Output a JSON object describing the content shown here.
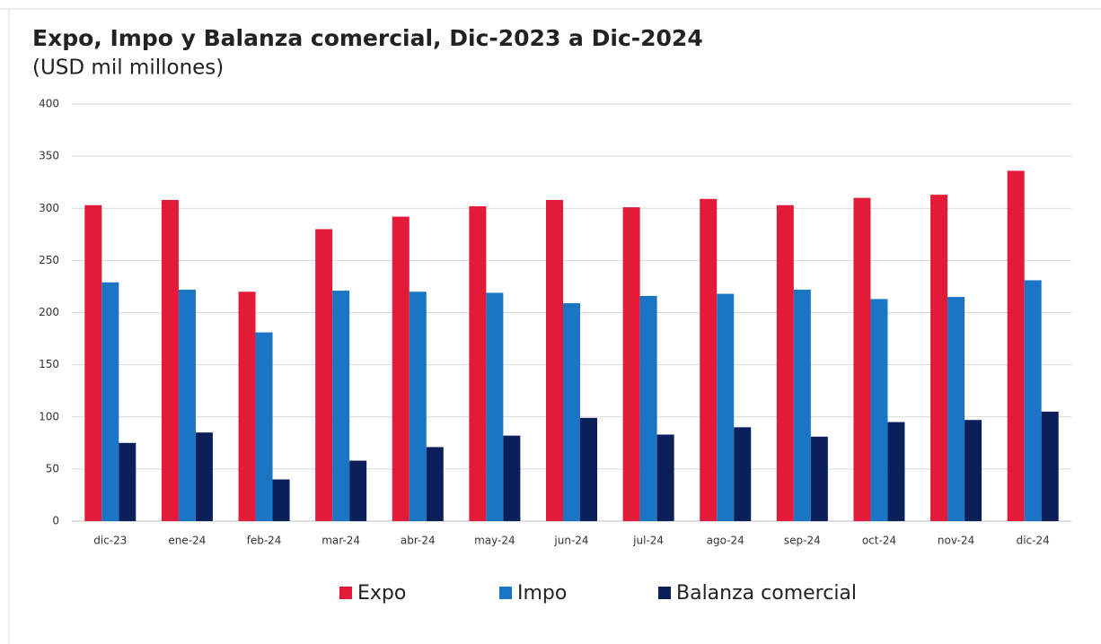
{
  "chart_data": {
    "type": "bar",
    "title": "Expo, Impo y Balanza comercial, Dic-2023 a Dic-2024",
    "subtitle": "(USD mil millones)",
    "categories": [
      "dic-23",
      "ene-24",
      "feb-24",
      "mar-24",
      "abr-24",
      "may-24",
      "jun-24",
      "jul-24",
      "ago-24",
      "sep-24",
      "oct-24",
      "nov-24",
      "dic-24"
    ],
    "series": [
      {
        "name": "Expo",
        "color": "#e31b38",
        "values": [
          303,
          308,
          220,
          280,
          292,
          302,
          308,
          301,
          309,
          303,
          310,
          313,
          336
        ]
      },
      {
        "name": "Impo",
        "color": "#1a75c4",
        "values": [
          229,
          222,
          181,
          221,
          220,
          219,
          209,
          216,
          218,
          222,
          213,
          215,
          231
        ]
      },
      {
        "name": "Balanza comercial",
        "color": "#0b2059",
        "values": [
          75,
          85,
          40,
          58,
          71,
          82,
          99,
          83,
          90,
          81,
          95,
          97,
          105
        ]
      }
    ],
    "ylim": [
      0,
      400
    ],
    "yticks": [
      0,
      50,
      100,
      150,
      200,
      250,
      300,
      350,
      400
    ],
    "grid": true,
    "legend": "bottom"
  }
}
